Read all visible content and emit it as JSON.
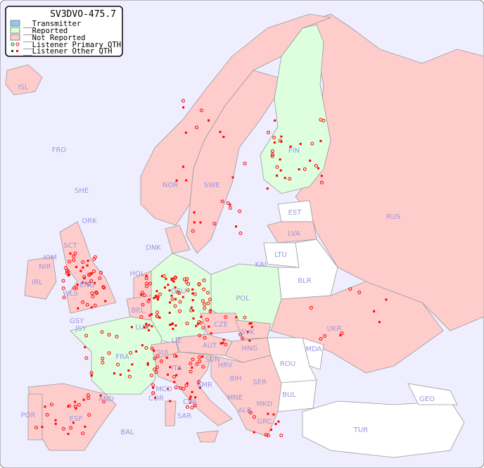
{
  "legend": {
    "title": "SV3DVO-475.7",
    "items": [
      {
        "label": "__Transmitter",
        "color": "#88ccee"
      },
      {
        "label": "__Reported",
        "color": "#ddffdd"
      },
      {
        "label": "__Not Reported",
        "color": "#ffcccc"
      },
      {
        "label": "__Listener Primary QTH",
        "symbol": "circle"
      },
      {
        "label": "__Listener Other QTH",
        "symbol": "square"
      }
    ]
  },
  "colors": {
    "sea": "#eeeeff",
    "not_reported": "#ffcccc",
    "reported": "#ddffdd",
    "no_data": "#ffffff",
    "marker": "#ff0000",
    "primary_marker_self": "#006600",
    "label": "#9999dd"
  },
  "countries": [
    "ISL",
    "FRO",
    "SHE",
    "ORK",
    "NOR",
    "SWE",
    "FIN",
    "EST",
    "RUS",
    "LVA",
    "LTU",
    "DNK",
    "KAL",
    "BLR",
    "HOL",
    "DEU",
    "POL",
    "IRL",
    "IOM",
    "NIR",
    "SCT",
    "WLS",
    "ENG",
    "GSY",
    "JSY",
    "BEL",
    "LUX",
    "CZE",
    "SVK",
    "UKR",
    "FRA",
    "SUI",
    "LIE",
    "AUT",
    "HNG",
    "MDA",
    "SVN",
    "HRV",
    "ROU",
    "ITA",
    "BIH",
    "SER",
    "MCO",
    "COR",
    "SMR",
    "BUL",
    "GEO",
    "AND",
    "MNE",
    "MKD",
    "ALB",
    "CVA",
    "POR",
    "ESP",
    "SAR",
    "GRC",
    "TUR",
    "BAL"
  ]
}
